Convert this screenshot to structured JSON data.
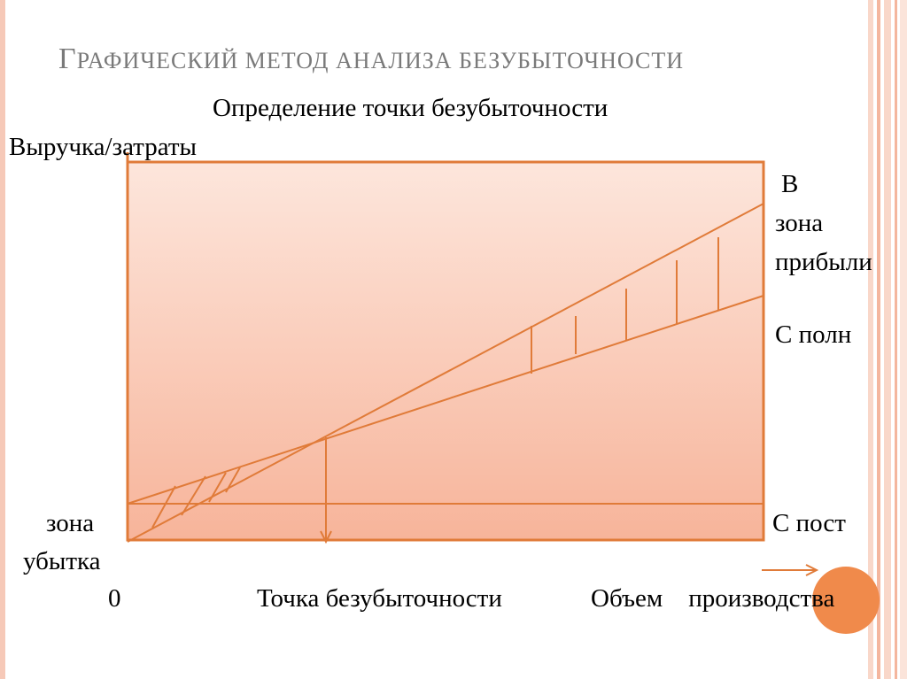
{
  "title": {
    "first": "Г",
    "rest": "РАФИЧЕСКИЙ МЕТОД АНАЛИЗА БЕЗУБЫТОЧНОСТИ"
  },
  "subtitle": "Определение точки безубыточности",
  "axis": {
    "y_label": "Выручка/затраты",
    "x_label": "Объем    производства",
    "origin": "0"
  },
  "labels": {
    "revenue": "В",
    "profit_zone_1": "зона",
    "profit_zone_2": "прибыли",
    "total_costs": "С полн",
    "fixed_costs": "С пост",
    "loss_zone_1": "зона",
    "loss_zone_2": "убытка",
    "breakeven_point": "Точка безубыточности"
  },
  "colors": {
    "accent": "#e07b39",
    "fill_top": "#fde6dc",
    "fill_bottom": "#f7b49a",
    "title_gray": "#7a7a7a",
    "dot": "#f08a4b"
  }
}
